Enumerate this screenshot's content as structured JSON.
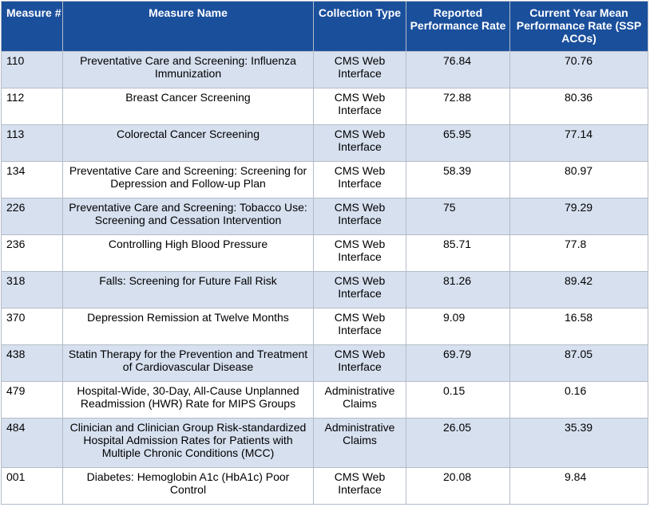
{
  "table": {
    "headers": {
      "measure_num": "Measure #",
      "measure_name": "Measure Name",
      "collection_type": "Collection Type",
      "reported_rate": "Reported Performance Rate",
      "mean_rate": "Current Year Mean Performance Rate (SSP ACOs)"
    },
    "rows": [
      {
        "num": "110",
        "name": "Preventative Care and Screening: Influenza Immunization",
        "type": "CMS Web Interface",
        "rate": "76.84",
        "mean": "70.76"
      },
      {
        "num": "112",
        "name": "Breast Cancer Screening",
        "type": "CMS Web Interface",
        "rate": "72.88",
        "mean": "80.36"
      },
      {
        "num": "113",
        "name": "Colorectal Cancer Screening",
        "type": "CMS Web Interface",
        "rate": "65.95",
        "mean": "77.14"
      },
      {
        "num": "134",
        "name": "Preventative Care and Screening: Screening for Depression and Follow-up Plan",
        "type": "CMS Web Interface",
        "rate": "58.39",
        "mean": "80.97"
      },
      {
        "num": "226",
        "name": "Preventative Care and Screening: Tobacco Use: Screening and Cessation Intervention",
        "type": "CMS Web Interface",
        "rate": "75",
        "mean": "79.29"
      },
      {
        "num": "236",
        "name": "Controlling High Blood Pressure",
        "type": "CMS Web Interface",
        "rate": "85.71",
        "mean": "77.8"
      },
      {
        "num": "318",
        "name": "Falls: Screening for Future Fall Risk",
        "type": "CMS Web Interface",
        "rate": "81.26",
        "mean": "89.42"
      },
      {
        "num": "370",
        "name": "Depression Remission at Twelve Months",
        "type": "CMS Web Interface",
        "rate": "9.09",
        "mean": "16.58"
      },
      {
        "num": "438",
        "name": "Statin Therapy for the Prevention and Treatment of Cardiovascular Disease",
        "type": "CMS Web Interface",
        "rate": "69.79",
        "mean": "87.05"
      },
      {
        "num": "479",
        "name": "Hospital-Wide, 30-Day, All-Cause Unplanned Readmission (HWR) Rate for MIPS Groups",
        "type": "Administrative Claims",
        "rate": "0.15",
        "mean": "0.16"
      },
      {
        "num": "484",
        "name": "Clinician and Clinician Group Risk-standardized Hospital Admission Rates for Patients with Multiple Chronic Conditions (MCC)",
        "type": "Administrative Claims",
        "rate": "26.05",
        "mean": "35.39"
      },
      {
        "num": "001",
        "name": "Diabetes: Hemoglobin A1c (HbA1c) Poor Control",
        "type": "CMS Web Interface",
        "rate": "20.08",
        "mean": "9.84"
      }
    ]
  }
}
